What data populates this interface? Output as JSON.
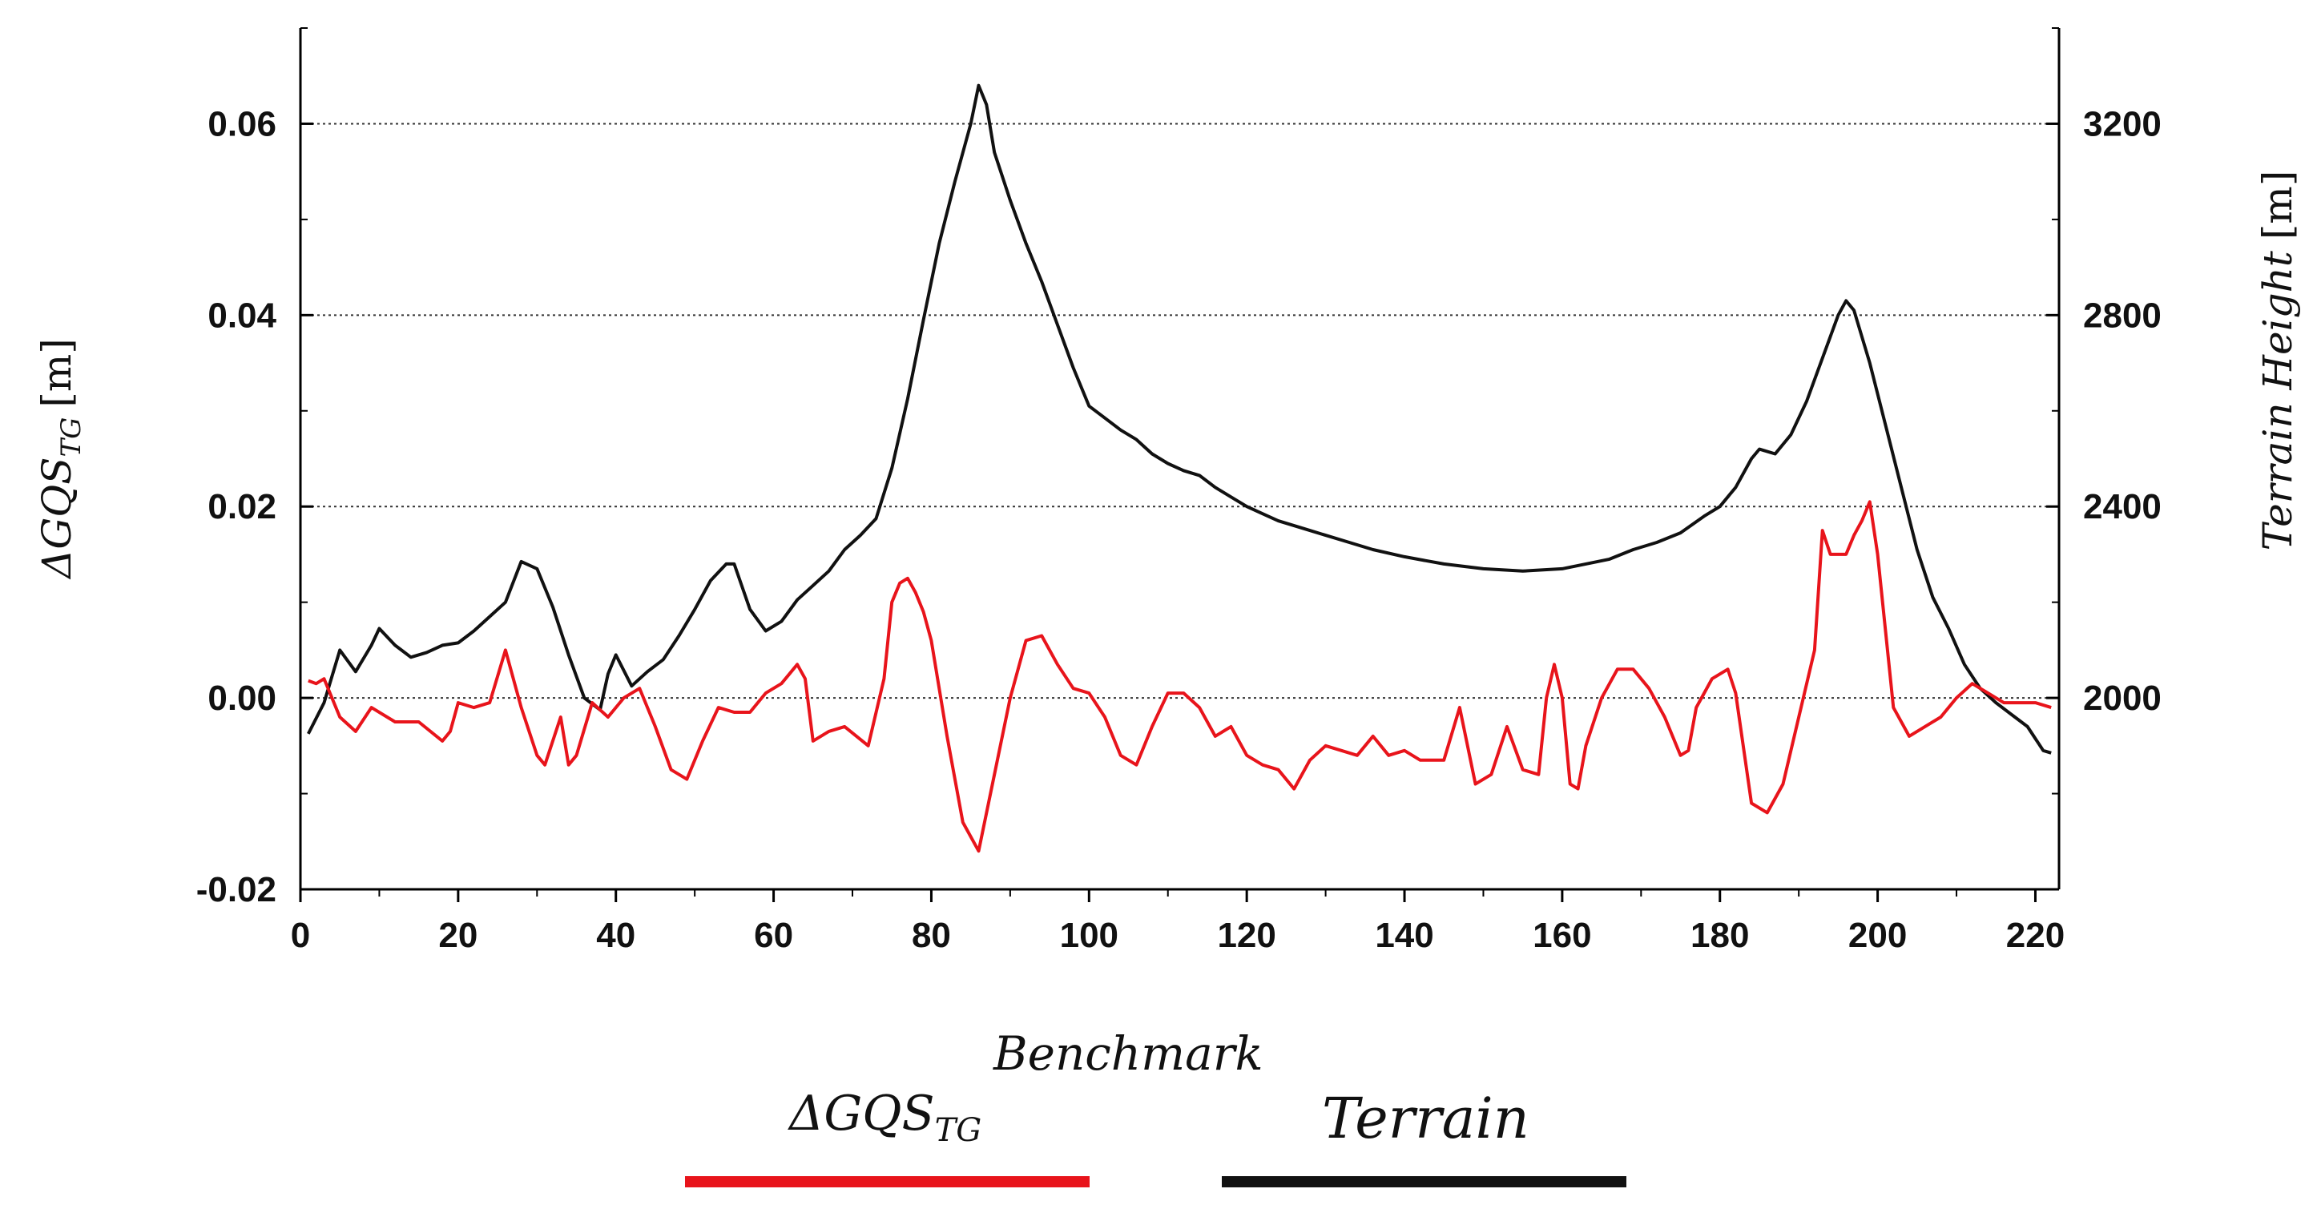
{
  "chart_data": {
    "type": "line",
    "title": "",
    "xlabel": "",
    "x_ticks": [
      "0",
      "20",
      "40",
      "60",
      "80",
      "100",
      "120",
      "140",
      "160",
      "180",
      "200",
      "220"
    ],
    "xlim": [
      0,
      223
    ],
    "y_left": {
      "label_main": "ΔGQS",
      "label_sub": "TG",
      "label_unit": "[m]",
      "ticks": [
        "0.06",
        "0.04",
        "0.02",
        "0.00",
        "-0.02"
      ],
      "ylim": [
        -0.02,
        0.07
      ]
    },
    "y_right": {
      "label": "Terrain Height",
      "label_unit": "[m]",
      "ticks": [
        "3200",
        "2800",
        "2400",
        "2000"
      ],
      "ylim": [
        1600,
        3400
      ]
    },
    "grid_y_values": [
      0.06,
      0.04,
      0.02,
      0.0
    ],
    "series": [
      {
        "name": "Benchmark",
        "axis": "left",
        "color": "#e8141b",
        "x": [
          1,
          2,
          3,
          5,
          7,
          9,
          12,
          15,
          18,
          19,
          20,
          22,
          24,
          26,
          28,
          30,
          31,
          33,
          34,
          35,
          37,
          39,
          41,
          43,
          45,
          47,
          49,
          51,
          53,
          55,
          57,
          59,
          61,
          63,
          64,
          65,
          67,
          69,
          72,
          74,
          75,
          76,
          77,
          78,
          79,
          80,
          82,
          84,
          86,
          88,
          90,
          92,
          94,
          96,
          98,
          100,
          102,
          104,
          106,
          108,
          110,
          112,
          114,
          116,
          118,
          120,
          122,
          124,
          126,
          128,
          130,
          132,
          134,
          136,
          138,
          140,
          142,
          145,
          147,
          149,
          151,
          153,
          155,
          157,
          158,
          159,
          160,
          161,
          162,
          163,
          165,
          167,
          169,
          171,
          173,
          175,
          176,
          177,
          178,
          179,
          181,
          182,
          184,
          186,
          188,
          190,
          192,
          193,
          194,
          196,
          197,
          198,
          199,
          200,
          202,
          204,
          206,
          208,
          210,
          212,
          214,
          216,
          218,
          220,
          222
        ],
        "values": [
          0.0018,
          0.0015,
          0.002,
          -0.002,
          -0.0035,
          -0.001,
          -0.0025,
          -0.0025,
          -0.0045,
          -0.0035,
          -0.0005,
          -0.001,
          -0.0005,
          0.005,
          -0.001,
          -0.006,
          -0.007,
          -0.002,
          -0.007,
          -0.006,
          -0.0005,
          -0.002,
          0.0,
          0.001,
          -0.003,
          -0.0075,
          -0.0085,
          -0.0045,
          -0.001,
          -0.0015,
          -0.0015,
          0.0005,
          0.0015,
          0.0035,
          0.002,
          -0.0045,
          -0.0035,
          -0.003,
          -0.005,
          0.002,
          0.01,
          0.012,
          0.0125,
          0.011,
          0.009,
          0.006,
          -0.004,
          -0.013,
          -0.016,
          -0.008,
          0.0,
          0.006,
          0.0065,
          0.0035,
          0.001,
          0.0005,
          -0.002,
          -0.006,
          -0.007,
          -0.003,
          0.0005,
          0.0005,
          -0.001,
          -0.004,
          -0.003,
          -0.006,
          -0.007,
          -0.0075,
          -0.0095,
          -0.0065,
          -0.005,
          -0.0055,
          -0.006,
          -0.004,
          -0.006,
          -0.0055,
          -0.0065,
          -0.0065,
          -0.001,
          -0.009,
          -0.008,
          -0.003,
          -0.0075,
          -0.008,
          0.0,
          0.0035,
          0.0,
          -0.009,
          -0.0095,
          -0.005,
          0.0,
          0.003,
          0.003,
          0.001,
          -0.002,
          -0.006,
          -0.0055,
          -0.001,
          0.0005,
          0.002,
          0.003,
          0.0005,
          -0.011,
          -0.012,
          -0.009,
          -0.002,
          0.005,
          0.0175,
          0.015,
          0.015,
          0.017,
          0.0185,
          0.0205,
          0.015,
          -0.001,
          -0.004,
          -0.003,
          -0.002,
          0.0,
          0.0015,
          0.0005,
          -0.0005,
          -0.0005,
          -0.0005,
          -0.001
        ]
      },
      {
        "name": "Terrain",
        "axis": "right",
        "color": "#111111",
        "x": [
          1,
          3,
          5,
          7,
          9,
          10,
          12,
          14,
          16,
          18,
          20,
          22,
          24,
          26,
          28,
          30,
          32,
          34,
          36,
          38,
          39,
          40,
          42,
          44,
          46,
          48,
          50,
          52,
          54,
          55,
          57,
          59,
          61,
          63,
          65,
          67,
          69,
          71,
          73,
          75,
          77,
          79,
          81,
          83,
          85,
          86,
          87,
          88,
          90,
          92,
          94,
          96,
          98,
          100,
          102,
          104,
          106,
          108,
          110,
          112,
          114,
          116,
          118,
          120,
          122,
          124,
          126,
          128,
          130,
          133,
          136,
          140,
          145,
          150,
          155,
          160,
          163,
          166,
          169,
          172,
          175,
          178,
          180,
          182,
          184,
          185,
          187,
          189,
          191,
          193,
          195,
          196,
          197,
          199,
          201,
          203,
          205,
          207,
          209,
          211,
          213,
          215,
          217,
          219,
          221,
          222
        ],
        "values": [
          1925,
          1990,
          2100,
          2055,
          2110,
          2145,
          2110,
          2085,
          2095,
          2110,
          2115,
          2140,
          2170,
          2200,
          2285,
          2270,
          2190,
          2090,
          2000,
          1975,
          2050,
          2090,
          2025,
          2055,
          2080,
          2130,
          2185,
          2245,
          2280,
          2280,
          2185,
          2140,
          2160,
          2205,
          2235,
          2265,
          2310,
          2340,
          2375,
          2480,
          2625,
          2790,
          2950,
          3080,
          3200,
          3280,
          3240,
          3140,
          3040,
          2950,
          2870,
          2780,
          2690,
          2610,
          2585,
          2560,
          2540,
          2510,
          2490,
          2475,
          2465,
          2440,
          2420,
          2400,
          2385,
          2370,
          2360,
          2350,
          2340,
          2325,
          2310,
          2295,
          2280,
          2270,
          2265,
          2270,
          2280,
          2290,
          2310,
          2325,
          2345,
          2380,
          2400,
          2440,
          2500,
          2520,
          2510,
          2550,
          2620,
          2710,
          2800,
          2830,
          2810,
          2700,
          2570,
          2440,
          2310,
          2210,
          2145,
          2070,
          2020,
          1990,
          1965,
          1940,
          1890,
          1885
        ]
      }
    ],
    "legend": {
      "placement": "bottom-center",
      "entries": [
        {
          "main": "ΔGQS",
          "sub": "TG",
          "sup": "Benchmark",
          "color": "#e8141b"
        },
        {
          "main": "Terrain",
          "color": "#111111"
        }
      ]
    }
  }
}
